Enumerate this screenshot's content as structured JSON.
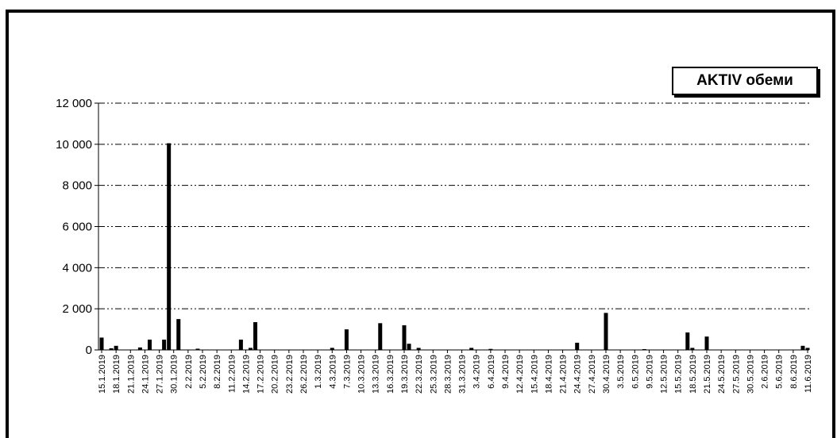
{
  "chart_data": {
    "type": "bar",
    "title": "",
    "xlabel": "",
    "ylabel": "",
    "ylim": [
      0,
      12000
    ],
    "yticks": [
      "0",
      "2 000",
      "4 000",
      "6 000",
      "8 000",
      "10 000",
      "12 000"
    ],
    "grid": true,
    "legend_placement": "top-right",
    "series": [
      {
        "name": "AKTIV обеми",
        "color": "#000000",
        "values": [
          {
            "date": "15.1.2019",
            "value": 600
          },
          {
            "date": "17.1.2019",
            "value": 80
          },
          {
            "date": "18.1.2019",
            "value": 200
          },
          {
            "date": "23.1.2019",
            "value": 120
          },
          {
            "date": "25.1.2019",
            "value": 500
          },
          {
            "date": "28.1.2019",
            "value": 500
          },
          {
            "date": "29.1.2019",
            "value": 10050
          },
          {
            "date": "31.1.2019",
            "value": 1500
          },
          {
            "date": "4.2.2019",
            "value": 60
          },
          {
            "date": "13.2.2019",
            "value": 500
          },
          {
            "date": "15.2.2019",
            "value": 100
          },
          {
            "date": "16.2.2019",
            "value": 1350
          },
          {
            "date": "4.3.2019",
            "value": 100
          },
          {
            "date": "7.3.2019",
            "value": 1000
          },
          {
            "date": "14.3.2019",
            "value": 1300
          },
          {
            "date": "19.3.2019",
            "value": 1200
          },
          {
            "date": "20.3.2019",
            "value": 300
          },
          {
            "date": "22.3.2019",
            "value": 100
          },
          {
            "date": "2.4.2019",
            "value": 100
          },
          {
            "date": "6.4.2019",
            "value": 50
          },
          {
            "date": "24.4.2019",
            "value": 350
          },
          {
            "date": "30.4.2019",
            "value": 1800
          },
          {
            "date": "8.5.2019",
            "value": 40
          },
          {
            "date": "17.5.2019",
            "value": 850
          },
          {
            "date": "18.5.2019",
            "value": 100
          },
          {
            "date": "21.5.2019",
            "value": 650
          },
          {
            "date": "10.6.2019",
            "value": 200
          },
          {
            "date": "11.6.2019",
            "value": 100
          }
        ]
      }
    ],
    "x_tick_labels": [
      "15.1.2019",
      "18.1.2019",
      "21.1.2019",
      "24.1.2019",
      "27.1.2019",
      "30.1.2019",
      "2.2.2019",
      "5.2.2019",
      "8.2.2019",
      "11.2.2019",
      "14.2.2019",
      "17.2.2019",
      "20.2.2019",
      "23.2.2019",
      "26.2.2019",
      "1.3.2019",
      "4.3.2019",
      "7.3.2019",
      "10.3.2019",
      "13.3.2019",
      "16.3.2019",
      "19.3.2019",
      "22.3.2019",
      "25.3.2019",
      "28.3.2019",
      "31.3.2019",
      "3.4.2019",
      "6.4.2019",
      "9.4.2019",
      "12.4.2019",
      "15.4.2019",
      "18.4.2019",
      "21.4.2019",
      "24.4.2019",
      "27.4.2019",
      "30.4.2019",
      "3.5.2019",
      "6.5.2019",
      "9.5.2019",
      "12.5.2019",
      "15.5.2019",
      "18.5.2019",
      "21.5.2019",
      "24.5.2019",
      "27.5.2019",
      "30.5.2019",
      "2.6.2019",
      "5.6.2019",
      "8.6.2019",
      "11.6.2019"
    ]
  }
}
